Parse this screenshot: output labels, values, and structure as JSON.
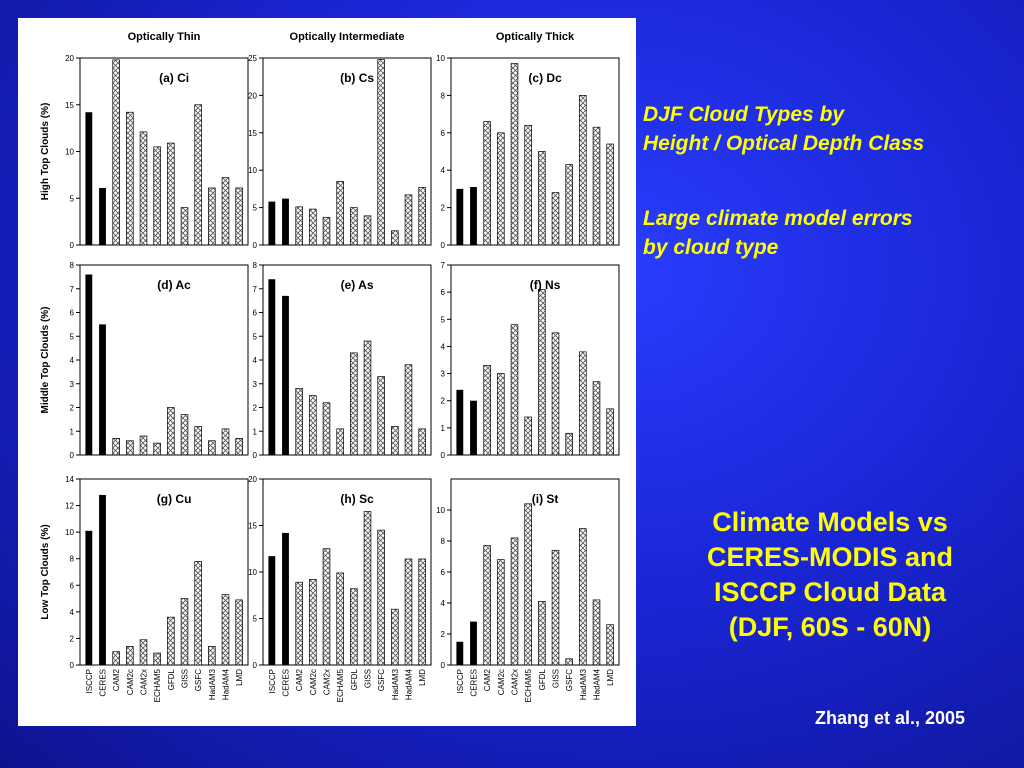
{
  "slide": {
    "note_title": [
      "DJF Cloud Types by",
      "Height / Optical Depth Class"
    ],
    "note_body": [
      "Large climate model errors",
      "by cloud type"
    ],
    "headline": [
      "Climate Models vs",
      "CERES-MODIS and",
      "ISCCP Cloud Data",
      "(DJF, 60S - 60N)"
    ],
    "citation": "Zhang et al., 2005",
    "colors": {
      "background": "#1a26d6",
      "accent_text": "#ffff00",
      "citation_text": "#ffffff",
      "observed_bar": "#000000",
      "model_bar_hatch": "#555555"
    }
  },
  "figure": {
    "column_titles": [
      "Optically Thin",
      "Optically Intermediate",
      "Optically Thick"
    ],
    "row_titles": [
      "High Top Clouds (%)",
      "Middle Top Clouds (%)",
      "Low Top Clouds (%)"
    ],
    "categories": [
      "ISCCP",
      "CERES",
      "CAM2",
      "CAM2c",
      "CAM2x",
      "ECHAM5",
      "GFDL",
      "GISS",
      "GSFC",
      "HadAM3",
      "HadAM4",
      "LMD"
    ],
    "observed_categories": [
      "ISCCP",
      "CERES"
    ]
  },
  "chart_data": [
    {
      "type": "bar",
      "title": "(a) Ci",
      "categories": [
        "ISCCP",
        "CERES",
        "CAM2",
        "CAM2c",
        "CAM2x",
        "ECHAM5",
        "GFDL",
        "GISS",
        "GSFC",
        "HadAM3",
        "HadAM4",
        "LMD"
      ],
      "values": [
        14.2,
        6.1,
        19.8,
        14.2,
        12.1,
        10.5,
        10.9,
        4.0,
        15.0,
        6.1,
        7.2,
        6.1
      ],
      "ylim": [
        0,
        20
      ],
      "yticks": [
        0,
        5,
        10,
        15,
        20
      ]
    },
    {
      "type": "bar",
      "title": "(b) Cs",
      "categories": [
        "ISCCP",
        "CERES",
        "CAM2",
        "CAM2c",
        "CAM2x",
        "ECHAM5",
        "GFDL",
        "GISS",
        "GSFC",
        "HadAM3",
        "HadAM4",
        "LMD"
      ],
      "values": [
        5.8,
        6.2,
        5.1,
        4.8,
        3.7,
        8.5,
        5.0,
        3.9,
        24.8,
        1.9,
        6.7,
        7.7
      ],
      "ylim": [
        0,
        25
      ],
      "yticks": [
        0,
        5,
        10,
        15,
        20,
        25
      ]
    },
    {
      "type": "bar",
      "title": "(c) Dc",
      "categories": [
        "ISCCP",
        "CERES",
        "CAM2",
        "CAM2c",
        "CAM2x",
        "ECHAM5",
        "GFDL",
        "GISS",
        "GSFC",
        "HadAM3",
        "HadAM4",
        "LMD"
      ],
      "values": [
        3.0,
        3.1,
        6.6,
        6.0,
        9.7,
        6.4,
        5.0,
        2.8,
        4.3,
        8.0,
        6.3,
        5.4
      ],
      "ylim": [
        0,
        10
      ],
      "yticks": [
        0,
        2,
        4,
        6,
        8,
        10
      ]
    },
    {
      "type": "bar",
      "title": "(d) Ac",
      "categories": [
        "ISCCP",
        "CERES",
        "CAM2",
        "CAM2c",
        "CAM2x",
        "ECHAM5",
        "GFDL",
        "GISS",
        "GSFC",
        "HadAM3",
        "HadAM4",
        "LMD"
      ],
      "values": [
        7.6,
        5.5,
        0.7,
        0.6,
        0.8,
        0.5,
        2.0,
        1.7,
        1.2,
        0.6,
        1.1,
        0.7
      ],
      "ylim": [
        0,
        8
      ],
      "yticks": [
        0,
        1,
        2,
        3,
        4,
        5,
        6,
        7,
        8
      ]
    },
    {
      "type": "bar",
      "title": "(e) As",
      "categories": [
        "ISCCP",
        "CERES",
        "CAM2",
        "CAM2c",
        "CAM2x",
        "ECHAM5",
        "GFDL",
        "GISS",
        "GSFC",
        "HadAM3",
        "HadAM4",
        "LMD"
      ],
      "values": [
        7.4,
        6.7,
        2.8,
        2.5,
        2.2,
        1.1,
        4.3,
        4.8,
        3.3,
        1.2,
        3.8,
        1.1
      ],
      "ylim": [
        0,
        8
      ],
      "yticks": [
        0,
        1,
        2,
        3,
        4,
        5,
        6,
        7,
        8
      ]
    },
    {
      "type": "bar",
      "title": "(f) Ns",
      "categories": [
        "ISCCP",
        "CERES",
        "CAM2",
        "CAM2c",
        "CAM2x",
        "ECHAM5",
        "GFDL",
        "GISS",
        "GSFC",
        "HadAM3",
        "HadAM4",
        "LMD"
      ],
      "values": [
        2.4,
        2.0,
        3.3,
        3.0,
        4.8,
        1.4,
        6.1,
        4.5,
        0.8,
        3.8,
        2.7,
        1.7
      ],
      "ylim": [
        0,
        7
      ],
      "yticks": [
        0,
        1,
        2,
        3,
        4,
        5,
        6,
        7
      ]
    },
    {
      "type": "bar",
      "title": "(g) Cu",
      "categories": [
        "ISCCP",
        "CERES",
        "CAM2",
        "CAM2c",
        "CAM2x",
        "ECHAM5",
        "GFDL",
        "GISS",
        "GSFC",
        "HadAM3",
        "HadAM4",
        "LMD"
      ],
      "values": [
        10.1,
        12.8,
        1.0,
        1.4,
        1.9,
        0.9,
        3.6,
        5.0,
        7.8,
        1.4,
        5.3,
        4.9
      ],
      "ylim": [
        0,
        14
      ],
      "yticks": [
        0,
        2,
        4,
        6,
        8,
        10,
        12,
        14
      ]
    },
    {
      "type": "bar",
      "title": "(h) Sc",
      "categories": [
        "ISCCP",
        "CERES",
        "CAM2",
        "CAM2c",
        "CAM2x",
        "ECHAM5",
        "GFDL",
        "GISS",
        "GSFC",
        "HadAM3",
        "HadAM4",
        "LMD"
      ],
      "values": [
        11.7,
        14.2,
        8.9,
        9.2,
        12.5,
        9.9,
        8.2,
        16.5,
        14.5,
        6.0,
        11.4,
        11.4
      ],
      "ylim": [
        0,
        20
      ],
      "yticks": [
        0,
        5,
        10,
        15,
        20
      ]
    },
    {
      "type": "bar",
      "title": "(i) St",
      "categories": [
        "ISCCP",
        "CERES",
        "CAM2",
        "CAM2c",
        "CAM2x",
        "ECHAM5",
        "GFDL",
        "GISS",
        "GSFC",
        "HadAM3",
        "HadAM4",
        "LMD"
      ],
      "values": [
        1.5,
        2.8,
        7.7,
        6.8,
        8.2,
        10.4,
        4.1,
        7.4,
        0.4,
        8.8,
        4.2,
        2.6
      ],
      "ylim": [
        0,
        12
      ],
      "yticks": [
        0,
        2,
        4,
        6,
        8,
        10
      ]
    }
  ]
}
